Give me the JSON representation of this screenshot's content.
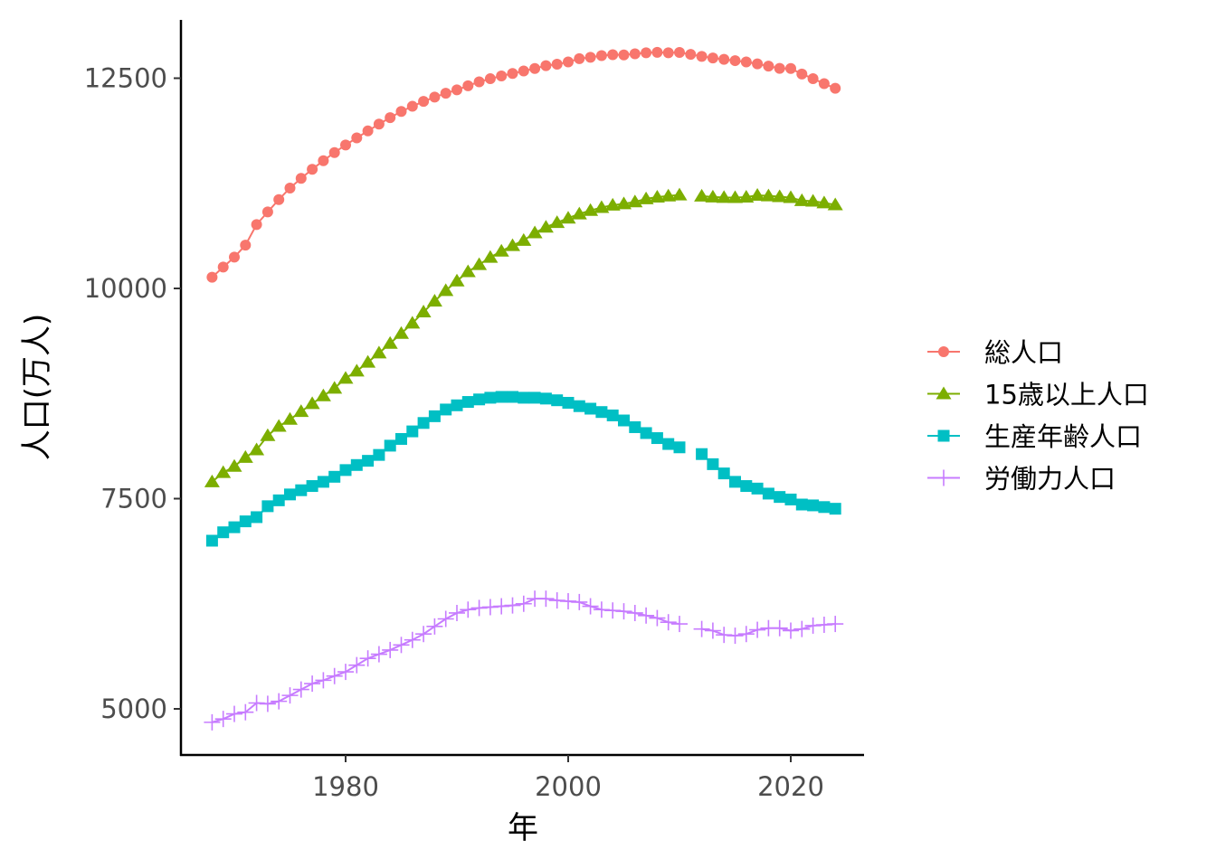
{
  "chart_data": {
    "type": "line",
    "title": "",
    "xlabel": "年",
    "ylabel": "人口(万人)",
    "xlim": [
      1966.5,
      2026.5
    ],
    "ylim": [
      4450,
      13200
    ],
    "x_ticks": [
      1980,
      2000,
      2020
    ],
    "y_ticks": [
      5000,
      7500,
      10000,
      12500
    ],
    "grid": false,
    "legend_position": "right",
    "x": [
      1968,
      1969,
      1970,
      1971,
      1972,
      1973,
      1974,
      1975,
      1976,
      1977,
      1978,
      1979,
      1980,
      1981,
      1982,
      1983,
      1984,
      1985,
      1986,
      1987,
      1988,
      1989,
      1990,
      1991,
      1992,
      1993,
      1994,
      1995,
      1996,
      1997,
      1998,
      1999,
      2000,
      2001,
      2002,
      2003,
      2004,
      2005,
      2006,
      2007,
      2008,
      2009,
      2010,
      2011,
      2012,
      2013,
      2014,
      2015,
      2016,
      2017,
      2018,
      2019,
      2020,
      2021,
      2022,
      2023,
      2024
    ],
    "series": [
      {
        "name": "総人口",
        "color": "#F8766D",
        "marker": "circle",
        "values": [
          10133,
          10254,
          10372,
          10515,
          10760,
          10910,
          11057,
          11194,
          11309,
          11417,
          11519,
          11616,
          11706,
          11790,
          11873,
          11954,
          12031,
          12105,
          12166,
          12224,
          12275,
          12321,
          12361,
          12410,
          12457,
          12494,
          12527,
          12557,
          12586,
          12616,
          12649,
          12667,
          12693,
          12732,
          12749,
          12769,
          12779,
          12777,
          12790,
          12803,
          12808,
          12803,
          12806,
          12783,
          12759,
          12741,
          12724,
          12709,
          12693,
          12671,
          12644,
          12617,
          12615,
          12550,
          12495,
          12435,
          12380
        ]
      },
      {
        "name": "15歳以上人口",
        "color": "#7CAE00",
        "marker": "triangle",
        "values": [
          7700,
          7810,
          7885,
          7990,
          8080,
          8250,
          8360,
          8443,
          8536,
          8630,
          8723,
          8813,
          8932,
          9017,
          9122,
          9232,
          9347,
          9465,
          9587,
          9720,
          9849,
          9974,
          10089,
          10199,
          10283,
          10370,
          10444,
          10510,
          10571,
          10661,
          10728,
          10783,
          10836,
          10886,
          10927,
          10962,
          10990,
          11007,
          11029,
          11066,
          11086,
          11099,
          11111,
          null,
          11098,
          11088,
          11082,
          11081,
          11086,
          11108,
          11101,
          11092,
          11080,
          11044,
          11038,
          11017,
          10994
        ]
      },
      {
        "name": "生産年齢人口",
        "color": "#00BFC4",
        "marker": "square",
        "values": [
          7000,
          7100,
          7160,
          7230,
          7280,
          7410,
          7480,
          7550,
          7600,
          7650,
          7700,
          7760,
          7840,
          7900,
          7950,
          8020,
          8130,
          8210,
          8300,
          8400,
          8480,
          8560,
          8610,
          8650,
          8680,
          8700,
          8710,
          8710,
          8700,
          8700,
          8690,
          8670,
          8640,
          8600,
          8570,
          8530,
          8490,
          8430,
          8350,
          8280,
          8220,
          8150,
          8110,
          null,
          8030,
          7910,
          7800,
          7700,
          7650,
          7620,
          7560,
          7520,
          7490,
          7430,
          7420,
          7400,
          7380
        ]
      },
      {
        "name": "労働力人口",
        "color": "#C77CFF",
        "marker": "plus",
        "values": [
          4840,
          4880,
          4940,
          4960,
          5070,
          5060,
          5090,
          5160,
          5230,
          5300,
          5340,
          5390,
          5440,
          5520,
          5600,
          5650,
          5700,
          5760,
          5820,
          5890,
          5980,
          6070,
          6140,
          6180,
          6200,
          6210,
          6220,
          6230,
          6250,
          6310,
          6310,
          6290,
          6280,
          6270,
          6220,
          6180,
          6170,
          6160,
          6140,
          6110,
          6080,
          6030,
          6010,
          null,
          5950,
          5930,
          5880,
          5870,
          5890,
          5940,
          5960,
          5960,
          5930,
          5950,
          5990,
          6000,
          6010
        ]
      }
    ]
  }
}
